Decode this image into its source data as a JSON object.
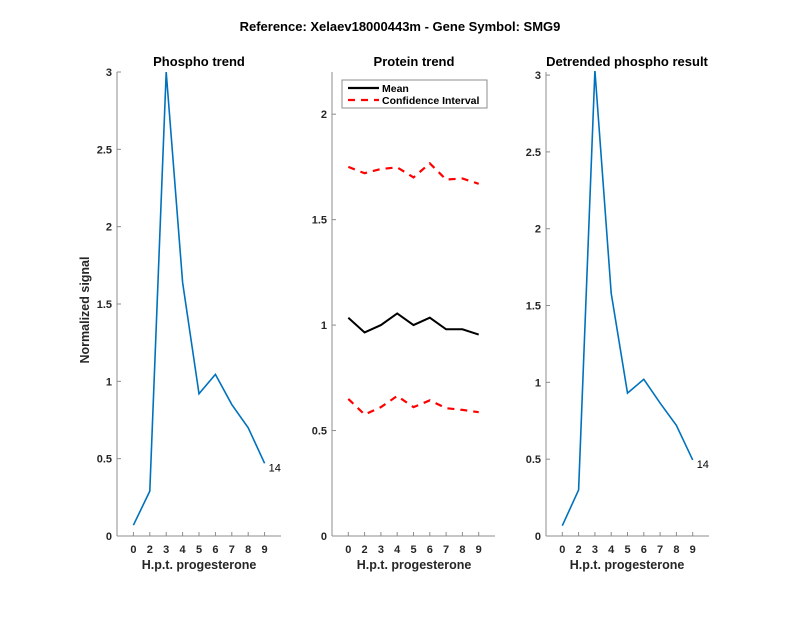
{
  "figure": {
    "suptitle": "Reference:  Xelaev18000443m - Gene Symbol:  SMG9"
  },
  "colors": {
    "phospho": "#0072BD",
    "mean": "#000000",
    "ci": "#FF0000",
    "axis": "#8c8c8c"
  },
  "chart_data": [
    {
      "type": "line",
      "title": "Phospho trend",
      "xlabel": "H.p.t. progesterone",
      "ylabel": "Normalized signal",
      "categories": [
        "0",
        "2",
        "3",
        "4",
        "5",
        "6",
        "7",
        "8",
        "9"
      ],
      "ylim": [
        0,
        3
      ],
      "yticks": [
        0,
        0.5,
        1,
        1.5,
        2,
        2.5,
        3
      ],
      "ytick_labels": [
        "0",
        "0.5",
        "1",
        "1.5",
        "2",
        "2.5",
        "3"
      ],
      "series": [
        {
          "name": "Phospho",
          "values": [
            0.07,
            0.29,
            3.0,
            1.64,
            0.92,
            1.045,
            0.85,
            0.7,
            0.47
          ]
        }
      ],
      "end_label": "14"
    },
    {
      "type": "line",
      "title": "Protein trend",
      "xlabel": "H.p.t. progesterone",
      "ylabel": "",
      "categories": [
        "0",
        "2",
        "3",
        "4",
        "5",
        "6",
        "7",
        "8",
        "9"
      ],
      "ylim": [
        0,
        2.2
      ],
      "yticks": [
        0,
        0.5,
        1,
        1.5,
        2
      ],
      "ytick_labels": [
        "0",
        "0.5",
        "1",
        "1.5",
        "2"
      ],
      "legend": {
        "placement": "top-left",
        "entries": [
          "Mean",
          "Confidence Interval"
        ]
      },
      "series": [
        {
          "name": "Mean",
          "values": [
            1.035,
            0.965,
            1.0,
            1.055,
            1.0,
            1.035,
            0.98,
            0.98,
            0.955
          ]
        },
        {
          "name": "Confidence Interval (upper)",
          "values": [
            1.75,
            1.72,
            1.74,
            1.748,
            1.7,
            1.767,
            1.69,
            1.695,
            1.67
          ]
        },
        {
          "name": "Confidence Interval (lower)",
          "values": [
            0.65,
            0.576,
            0.611,
            0.664,
            0.611,
            0.643,
            0.606,
            0.598,
            0.587
          ]
        }
      ]
    },
    {
      "type": "line",
      "title": "Detrended phospho result",
      "xlabel": "H.p.t. progesterone",
      "ylabel": "",
      "categories": [
        "0",
        "2",
        "3",
        "4",
        "5",
        "6",
        "7",
        "8",
        "9"
      ],
      "ylim": [
        0,
        3.02
      ],
      "yticks": [
        0,
        0.5,
        1,
        1.5,
        2,
        2.5,
        3
      ],
      "ytick_labels": [
        "0",
        "0.5",
        "1",
        "1.5",
        "2",
        "2.5",
        "3"
      ],
      "series": [
        {
          "name": "Detrended phospho",
          "values": [
            0.067,
            0.3,
            3.03,
            1.58,
            0.93,
            1.02,
            0.865,
            0.72,
            0.495
          ]
        }
      ],
      "end_label": "14"
    }
  ]
}
